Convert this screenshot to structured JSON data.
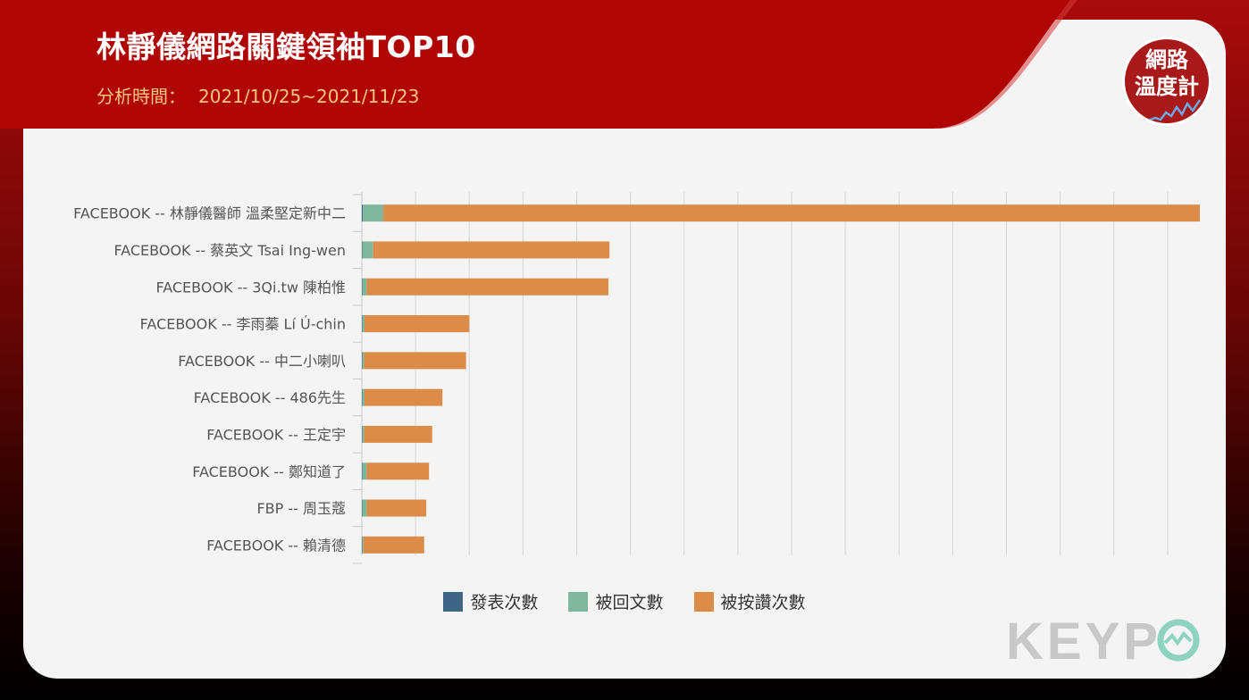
{
  "header": {
    "title": "林靜儀網路關鍵領袖TOP10",
    "period_label": "分析時間：",
    "period_value": "2021/10/25~2021/11/23"
  },
  "badge": {
    "line1": "網路",
    "line2": "溫度計"
  },
  "brand_logo": {
    "text": "KEYPO",
    "color": "#c8c8c8",
    "accent": "#8dd3c0"
  },
  "colors": {
    "posts": "#3d6685",
    "replies": "#7fb79e",
    "likes": "#dc8c48",
    "banner": "#b00505",
    "subtitle": "#f5c57e"
  },
  "chart_data": {
    "type": "bar",
    "orientation": "horizontal",
    "stacked": true,
    "categories": [
      "FACEBOOK -- 林靜儀醫師 溫柔堅定新中二",
      "FACEBOOK -- 蔡英文 Tsai Ing-wen",
      "FACEBOOK -- 3Qi.tw 陳柏惟",
      "FACEBOOK -- 李雨蓁 Lí Ú-chin",
      "FACEBOOK -- 中二小喇叭",
      "FACEBOOK -- 486先生",
      "FACEBOOK -- 王定宇",
      "FACEBOOK -- 鄭知道了",
      "FBP -- 周玉蔻",
      "FACEBOOK -- 賴清德"
    ],
    "series": [
      {
        "name": "發表次數",
        "color": "#3d6685",
        "values": [
          0.2,
          0.1,
          0.1,
          0.1,
          0.1,
          0.1,
          0.1,
          0.1,
          0.1,
          0.1
        ]
      },
      {
        "name": "被回文數",
        "color": "#7fb79e",
        "values": [
          3.8,
          2.0,
          0.8,
          0.4,
          0.3,
          0.4,
          0.3,
          0.8,
          0.8,
          0.2
        ]
      },
      {
        "name": "被按讚次數",
        "color": "#dc8c48",
        "values": [
          152.0,
          44.0,
          45.0,
          19.5,
          19.0,
          14.5,
          12.7,
          11.6,
          11.1,
          11.3
        ]
      }
    ],
    "xlim": [
      0,
      158
    ],
    "grid": true,
    "legend_position": "bottom"
  }
}
